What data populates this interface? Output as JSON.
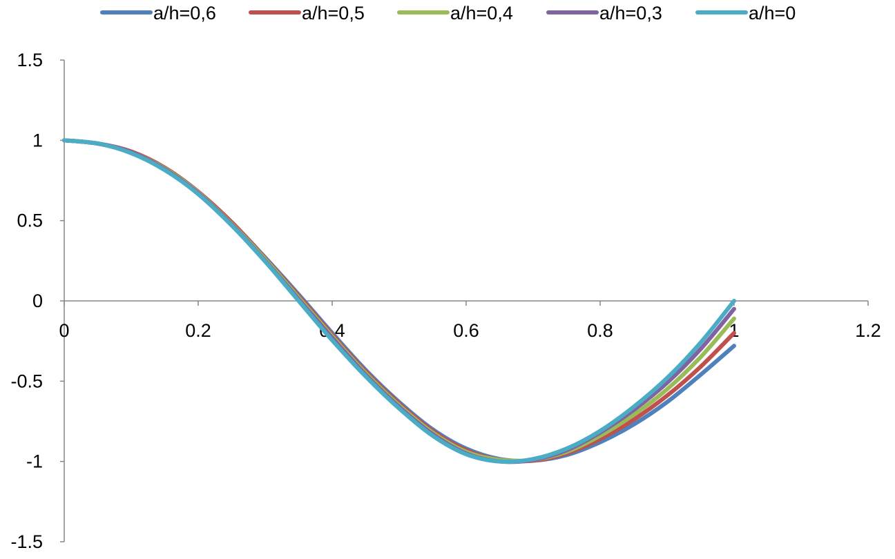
{
  "chart_data": {
    "type": "line",
    "title": "",
    "xlabel": "",
    "ylabel": "",
    "xlim": [
      0,
      1.2
    ],
    "ylim": [
      -1.5,
      1.5
    ],
    "x_ticks": [
      0,
      0.2,
      0.4,
      0.6,
      0.8,
      1,
      1.2
    ],
    "x_tick_labels": [
      "0",
      "0.2",
      "0.4",
      "0.6",
      "0.8",
      "1",
      "1.2"
    ],
    "y_ticks": [
      1.5,
      1,
      0.5,
      0,
      -0.5,
      -1,
      -1.5
    ],
    "y_tick_labels": [
      "1.5",
      "1",
      "0.5",
      "0",
      "-0.5",
      "-1",
      "-1.5"
    ],
    "grid": false,
    "legend_position": "top",
    "x": [
      0,
      0.05,
      0.1,
      0.15,
      0.2,
      0.25,
      0.3,
      0.35,
      0.4,
      0.45,
      0.5,
      0.55,
      0.6,
      0.65,
      0.7,
      0.75,
      0.8,
      0.85,
      0.9,
      0.95,
      1.0
    ],
    "series": [
      {
        "name": "a/h=0,6",
        "color": "#4f81bd",
        "values": [
          1.0,
          0.98,
          0.93,
          0.83,
          0.68,
          0.49,
          0.27,
          0.04,
          -0.2,
          -0.43,
          -0.63,
          -0.8,
          -0.92,
          -0.985,
          -0.995,
          -0.96,
          -0.88,
          -0.77,
          -0.63,
          -0.46,
          -0.28
        ]
      },
      {
        "name": "a/h=0,5",
        "color": "#c0504d",
        "values": [
          1.0,
          0.98,
          0.93,
          0.83,
          0.68,
          0.49,
          0.265,
          0.03,
          -0.21,
          -0.44,
          -0.64,
          -0.81,
          -0.93,
          -0.99,
          -0.995,
          -0.95,
          -0.86,
          -0.74,
          -0.59,
          -0.41,
          -0.2
        ]
      },
      {
        "name": "a/h=0,4",
        "color": "#9bbb59",
        "values": [
          1.0,
          0.98,
          0.925,
          0.825,
          0.675,
          0.48,
          0.26,
          0.02,
          -0.22,
          -0.45,
          -0.65,
          -0.82,
          -0.94,
          -0.99,
          -0.99,
          -0.94,
          -0.84,
          -0.71,
          -0.55,
          -0.35,
          -0.11
        ]
      },
      {
        "name": "a/h=0,3",
        "color": "#8064a2",
        "values": [
          1.0,
          0.98,
          0.925,
          0.82,
          0.67,
          0.475,
          0.25,
          0.01,
          -0.23,
          -0.46,
          -0.66,
          -0.83,
          -0.95,
          -1.0,
          -0.99,
          -0.93,
          -0.82,
          -0.68,
          -0.51,
          -0.3,
          -0.05
        ]
      },
      {
        "name": "a/h=0",
        "color": "#4bacc6",
        "values": [
          1.0,
          0.98,
          0.92,
          0.815,
          0.665,
          0.47,
          0.245,
          0.0,
          -0.245,
          -0.47,
          -0.67,
          -0.84,
          -0.955,
          -1.0,
          -0.985,
          -0.92,
          -0.81,
          -0.66,
          -0.48,
          -0.26,
          0.0
        ]
      }
    ]
  }
}
